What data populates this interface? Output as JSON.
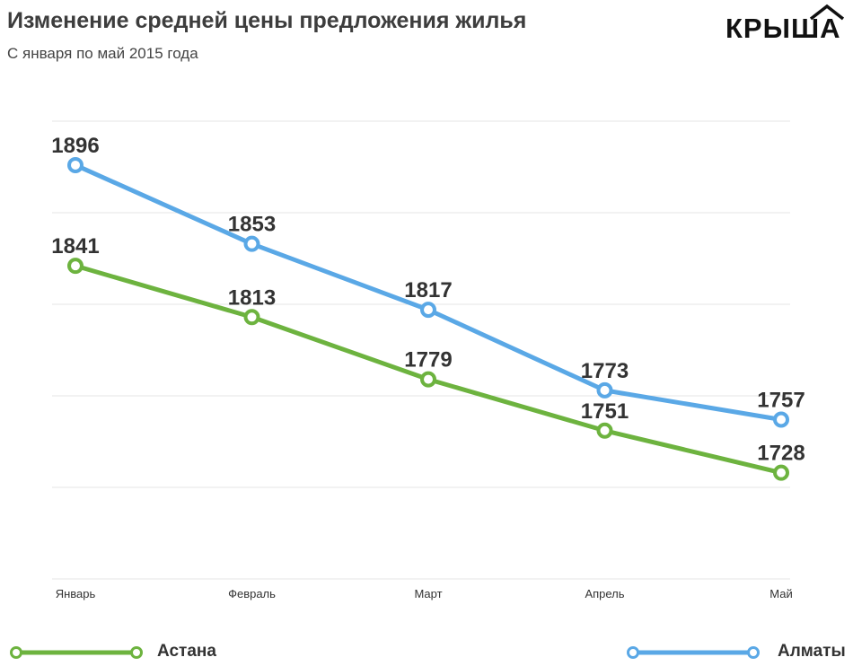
{
  "header": {
    "title": "Изменение средней цены предложения жилья",
    "subtitle": "С января по май 2015 года",
    "logo_text": "КРЫША"
  },
  "chart_data": {
    "type": "line",
    "categories": [
      "Январь",
      "Февраль",
      "Март",
      "Апрель",
      "Май"
    ],
    "series": [
      {
        "name": "Алматы",
        "color": "#5aa8e6",
        "values": [
          1896,
          1853,
          1817,
          1773,
          1757
        ]
      },
      {
        "name": "Астана",
        "color": "#6db33f",
        "values": [
          1841,
          1813,
          1779,
          1751,
          1728
        ]
      }
    ],
    "title": "Изменение средней цены предложения жилья",
    "subtitle": "С января по май 2015 года",
    "xlabel": "",
    "ylabel": "",
    "ylim": [
      1670,
      1920
    ],
    "grid": true,
    "data_labels": true,
    "legend_position": "bottom"
  }
}
